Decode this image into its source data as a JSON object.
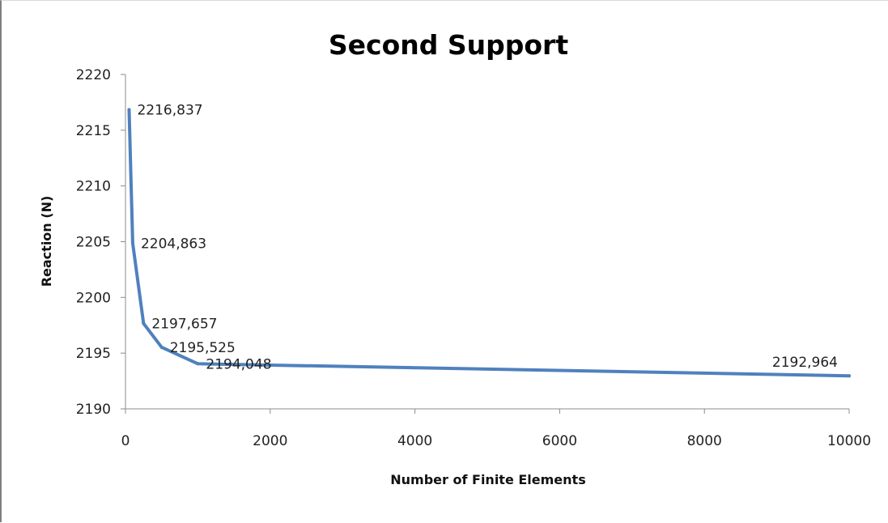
{
  "chart_data": {
    "type": "line",
    "title": "Second Support",
    "xlabel": "Number of Finite Elements",
    "ylabel": "Reaction (N)",
    "xlim": [
      0,
      10000
    ],
    "ylim": [
      2190,
      2220
    ],
    "x_ticks": [
      0,
      2000,
      4000,
      6000,
      8000,
      10000
    ],
    "y_ticks": [
      2190,
      2195,
      2200,
      2205,
      2210,
      2215,
      2220
    ],
    "x_tick_labels": [
      "0",
      "2000",
      "4000",
      "6000",
      "8000",
      "10000"
    ],
    "y_tick_labels": [
      "2190",
      "2195",
      "2200",
      "2205",
      "2210",
      "2215",
      "2220"
    ],
    "grid": false,
    "series_color": "#4f81bd",
    "series": [
      {
        "x": [
          50,
          100,
          250,
          500,
          1000,
          10000
        ],
        "y": [
          2216.837,
          2204.863,
          2197.657,
          2195.525,
          2194.048,
          2192.964
        ],
        "labels": [
          "2216,837",
          "2204,863",
          "2197,657",
          "2195,525",
          "2194,048",
          "2192,964"
        ]
      }
    ]
  }
}
